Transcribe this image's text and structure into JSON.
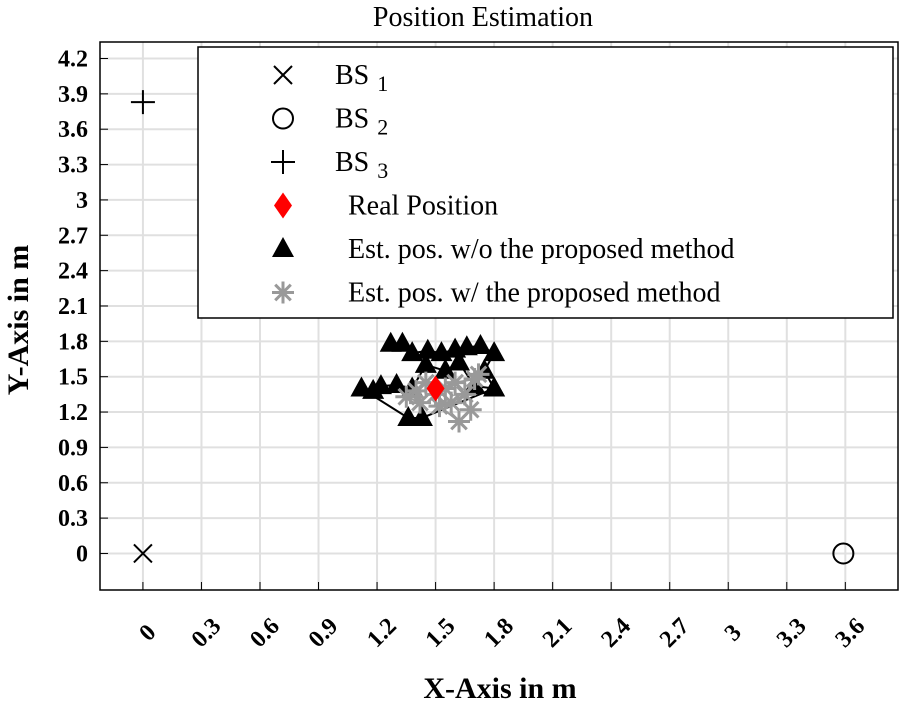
{
  "chart_data": {
    "type": "scatter",
    "title": "Position Estimation",
    "xlabel": "X-Axis in m",
    "ylabel": "Y-Axis in m",
    "xlim": [
      -0.22,
      3.87
    ],
    "ylim": [
      -0.31,
      4.34
    ],
    "xticks": [
      0,
      0.3,
      0.6,
      0.9,
      1.2,
      1.5,
      1.8,
      2.1,
      2.4,
      2.7,
      3,
      3.3,
      3.6
    ],
    "yticks": [
      0,
      0.3,
      0.6,
      0.9,
      1.2,
      1.5,
      1.8,
      2.1,
      2.4,
      2.7,
      3,
      3.3,
      3.6,
      3.9,
      4.2
    ],
    "grid": true,
    "legend_position": "top-right",
    "series": [
      {
        "name": "BS",
        "sub": "1",
        "marker": "x",
        "color": "#000000",
        "points": [
          [
            0,
            0
          ]
        ]
      },
      {
        "name": "BS",
        "sub": "2",
        "marker": "o",
        "color": "#000000",
        "points": [
          [
            3.59,
            0
          ]
        ]
      },
      {
        "name": "BS",
        "sub": "3",
        "marker": "+",
        "color": "#000000",
        "points": [
          [
            0,
            3.83
          ]
        ]
      },
      {
        "name": "Real Position",
        "marker": "diamond",
        "color": "#ff0000",
        "points": [
          [
            1.5,
            1.4
          ]
        ]
      },
      {
        "name": "Est. pos. w/o the proposed method",
        "marker": "triangle",
        "color": "#000000",
        "points": [
          [
            1.27,
            1.78
          ],
          [
            1.33,
            1.78
          ],
          [
            1.38,
            1.7
          ],
          [
            1.46,
            1.72
          ],
          [
            1.53,
            1.7
          ],
          [
            1.6,
            1.73
          ],
          [
            1.66,
            1.75
          ],
          [
            1.73,
            1.76
          ],
          [
            1.8,
            1.7
          ],
          [
            1.75,
            1.55
          ],
          [
            1.8,
            1.4
          ],
          [
            1.7,
            1.42
          ],
          [
            1.62,
            1.62
          ],
          [
            1.55,
            1.55
          ],
          [
            1.45,
            1.6
          ],
          [
            1.38,
            1.4
          ],
          [
            1.3,
            1.43
          ],
          [
            1.22,
            1.42
          ],
          [
            1.18,
            1.38
          ],
          [
            1.12,
            1.4
          ],
          [
            1.36,
            1.15
          ],
          [
            1.43,
            1.15
          ],
          [
            1.8,
            1.4
          ]
        ]
      },
      {
        "name": "Est. pos. w/ the proposed method",
        "marker": "asterisk",
        "color": "#999999",
        "points": [
          [
            1.35,
            1.33
          ],
          [
            1.42,
            1.28
          ],
          [
            1.4,
            1.38
          ],
          [
            1.45,
            1.45
          ],
          [
            1.5,
            1.35
          ],
          [
            1.55,
            1.4
          ],
          [
            1.6,
            1.45
          ],
          [
            1.7,
            1.48
          ],
          [
            1.72,
            1.52
          ],
          [
            1.65,
            1.35
          ],
          [
            1.58,
            1.28
          ],
          [
            1.52,
            1.25
          ],
          [
            1.62,
            1.12
          ],
          [
            1.68,
            1.22
          ]
        ]
      }
    ]
  }
}
